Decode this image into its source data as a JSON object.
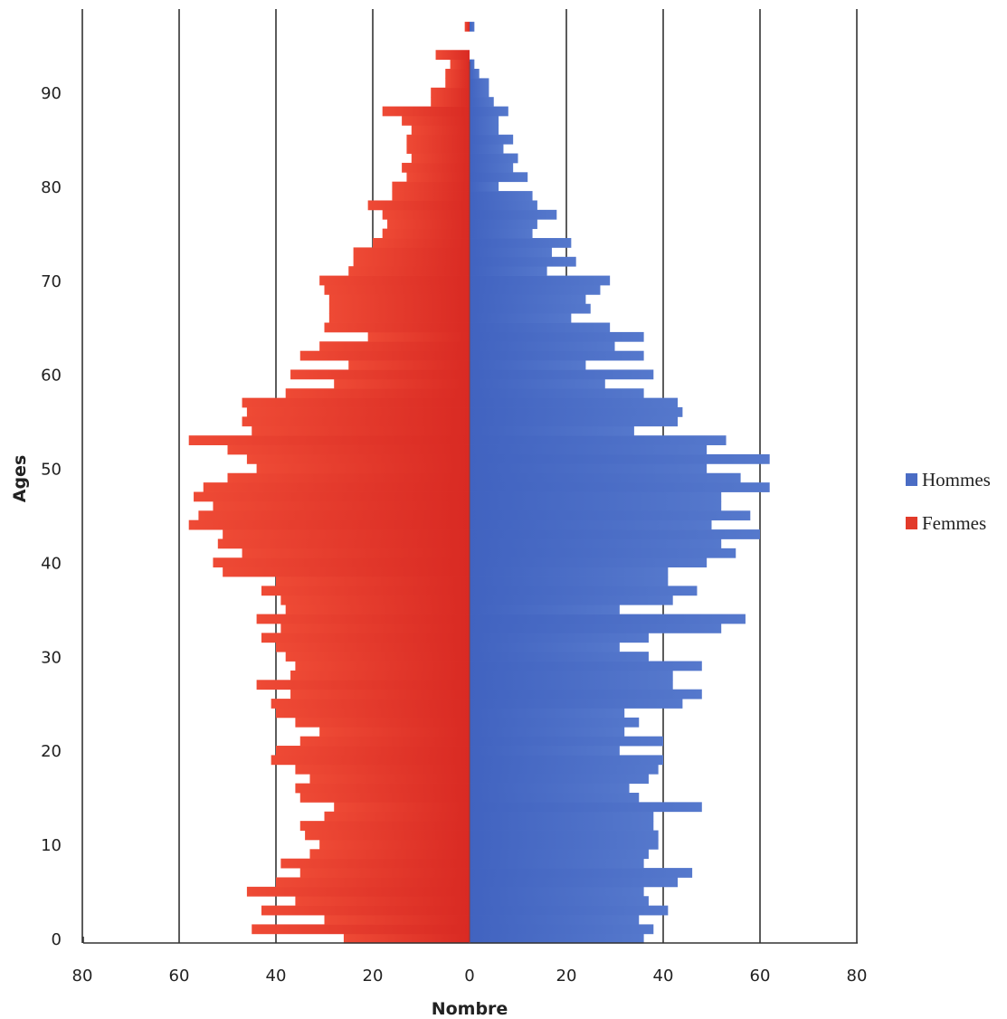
{
  "chart_data": {
    "type": "bar",
    "orientation": "horizontal",
    "subtype": "population-pyramid",
    "xlabel": "Nombre",
    "ylabel": "Ages",
    "xlim": [
      -80,
      80
    ],
    "ylim": [
      0,
      98
    ],
    "x_ticks": [
      -80,
      -60,
      -40,
      -20,
      0,
      20,
      40,
      60,
      80
    ],
    "x_tick_labels": [
      "80",
      "60",
      "40",
      "20",
      "0",
      "20",
      "40",
      "60",
      "80"
    ],
    "y_ticks": [
      0,
      10,
      20,
      30,
      40,
      50,
      60,
      70,
      80,
      90
    ],
    "y_tick_labels": [
      "0",
      "10",
      "20",
      "30",
      "40",
      "50",
      "60",
      "70",
      "80",
      "90"
    ],
    "grid": "vertical",
    "legend_position": "right",
    "ages": [
      0,
      1,
      2,
      3,
      4,
      5,
      6,
      7,
      8,
      9,
      10,
      11,
      12,
      13,
      14,
      15,
      16,
      17,
      18,
      19,
      20,
      21,
      22,
      23,
      24,
      25,
      26,
      27,
      28,
      29,
      30,
      31,
      32,
      33,
      34,
      35,
      36,
      37,
      38,
      39,
      40,
      41,
      42,
      43,
      44,
      45,
      46,
      47,
      48,
      49,
      50,
      51,
      52,
      53,
      54,
      55,
      56,
      57,
      58,
      59,
      60,
      61,
      62,
      63,
      64,
      65,
      66,
      67,
      68,
      69,
      70,
      71,
      72,
      73,
      74,
      75,
      76,
      77,
      78,
      79,
      80,
      81,
      82,
      83,
      84,
      85,
      86,
      87,
      88,
      89,
      90,
      91,
      92,
      93,
      94,
      95,
      96,
      97,
      98
    ],
    "series": [
      {
        "name": "Hommes",
        "color": "#4a6cc4",
        "side": "right",
        "values": [
          36,
          38,
          35,
          41,
          37,
          36,
          43,
          46,
          36,
          37,
          39,
          39,
          38,
          38,
          48,
          35,
          33,
          37,
          39,
          40,
          31,
          40,
          32,
          35,
          32,
          44,
          48,
          42,
          42,
          48,
          37,
          31,
          37,
          52,
          57,
          31,
          42,
          47,
          41,
          41,
          49,
          55,
          52,
          60,
          50,
          58,
          52,
          52,
          62,
          56,
          49,
          62,
          49,
          53,
          34,
          43,
          44,
          43,
          36,
          28,
          38,
          24,
          36,
          30,
          36,
          29,
          21,
          25,
          24,
          27,
          29,
          16,
          22,
          17,
          21,
          13,
          14,
          18,
          14,
          13,
          6,
          12,
          9,
          10,
          7,
          9,
          6,
          6,
          8,
          5,
          4,
          4,
          2,
          1,
          0,
          0,
          0,
          1,
          0
        ]
      },
      {
        "name": "Femmes",
        "color": "#e23a2a",
        "side": "left",
        "values": [
          26,
          45,
          30,
          43,
          36,
          46,
          40,
          35,
          39,
          33,
          31,
          34,
          35,
          30,
          28,
          35,
          36,
          33,
          36,
          41,
          40,
          35,
          31,
          36,
          40,
          41,
          37,
          44,
          37,
          36,
          38,
          40,
          43,
          39,
          44,
          38,
          39,
          43,
          40,
          51,
          53,
          47,
          52,
          51,
          58,
          56,
          53,
          57,
          55,
          50,
          44,
          46,
          50,
          58,
          45,
          47,
          46,
          47,
          38,
          28,
          37,
          25,
          35,
          31,
          21,
          30,
          29,
          29,
          29,
          30,
          31,
          25,
          24,
          24,
          20,
          18,
          17,
          18,
          21,
          16,
          16,
          13,
          14,
          12,
          13,
          13,
          12,
          14,
          18,
          8,
          8,
          5,
          5,
          4,
          7,
          0,
          0,
          1,
          0
        ]
      }
    ]
  }
}
